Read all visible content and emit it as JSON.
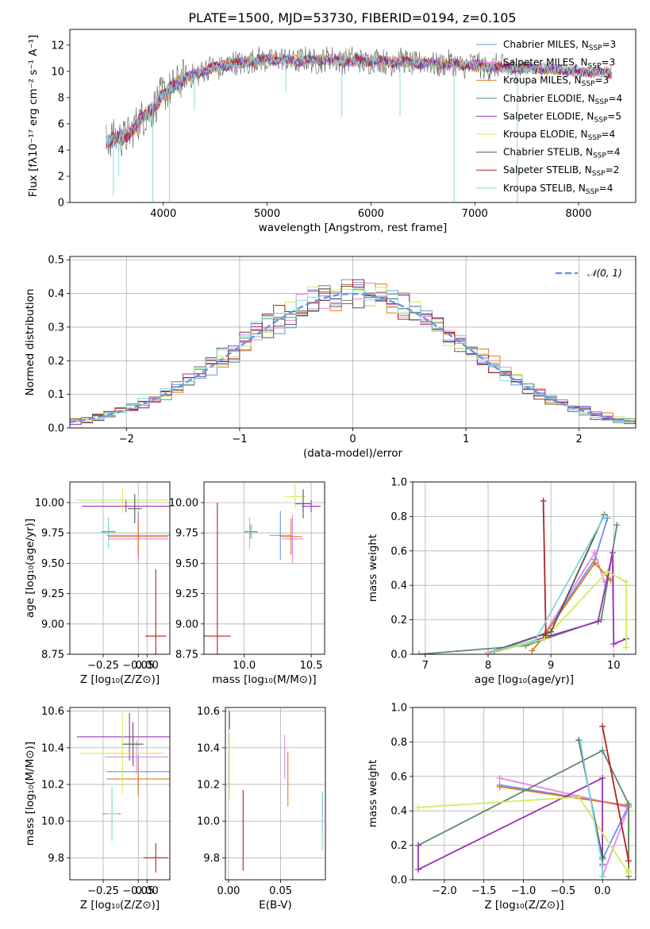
{
  "title": "PLATE=1500, MJD=53730, FIBERID=0194, z=0.105",
  "models": [
    {
      "name": "Chabrier MILES",
      "nssp": "3",
      "color": "#6495ed"
    },
    {
      "name": "Salpeter MILES",
      "nssp": "3",
      "color": "#ee82ee"
    },
    {
      "name": "Kroupa MILES",
      "nssp": "3",
      "color": "#e07b1a"
    },
    {
      "name": "Chabrier ELODIE",
      "nssp": "4",
      "color": "#5f8a6a"
    },
    {
      "name": "Salpeter ELODIE",
      "nssp": "5",
      "color": "#9b30b5"
    },
    {
      "name": "Kroupa ELODIE",
      "nssp": "4",
      "color": "#d4ea5a"
    },
    {
      "name": "Chabrier STELIB",
      "nssp": "4",
      "color": "#555555"
    },
    {
      "name": "Salpeter STELIB",
      "nssp": "2",
      "color": "#b22222"
    },
    {
      "name": "Kroupa STELIB",
      "nssp": "4",
      "color": "#7fd8d8"
    }
  ],
  "legend_nssp_prefix": "N",
  "legend_nssp_sub": "SSP",
  "chart_data": [
    {
      "id": "spectrum",
      "type": "line",
      "xlabel": "wavelength [Angstrom, rest frame]",
      "ylabel": "Flux [fλ10⁻¹⁷ erg cm⁻² s⁻¹ A⁻¹]",
      "xlim": [
        3100,
        8550
      ],
      "ylim": [
        0,
        13.2
      ],
      "xticks": [
        4000,
        5000,
        6000,
        7000,
        8000
      ],
      "yticks": [
        0,
        2,
        4,
        6,
        8,
        10,
        12
      ],
      "anchors_x": [
        3450,
        3600,
        3700,
        3800,
        3900,
        4000,
        4100,
        4300,
        4500,
        4800,
        5000,
        5300,
        5600,
        6000,
        6300,
        6600,
        6900,
        7200,
        7600,
        8000,
        8300
      ],
      "anchors_y": [
        4.6,
        5.0,
        5.4,
        6.5,
        7.2,
        8.2,
        9.0,
        9.8,
        10.3,
        10.7,
        10.9,
        10.8,
        10.9,
        10.8,
        10.7,
        10.6,
        10.5,
        10.3,
        10.2,
        10.0,
        9.9
      ]
    },
    {
      "id": "residuals",
      "type": "line",
      "xlabel": "(data-model)/error",
      "ylabel": "Normed distribution",
      "xlim": [
        -2.5,
        2.5
      ],
      "ylim": [
        0,
        0.51
      ],
      "xticks": [
        -2,
        -1,
        0,
        1,
        2
      ],
      "yticks": [
        0.0,
        0.1,
        0.2,
        0.3,
        0.4,
        0.5
      ],
      "gauss_label": "𝒩(0, 1)",
      "gauss_color": "#6495ed"
    },
    {
      "id": "age_vs_Z",
      "type": "scatter",
      "xlabel": "Z [log₁₀(Z/Z⊙)]",
      "ylabel": "age  [log₁₀(age/yr)]",
      "xlim": [
        -0.44,
        0.13
      ],
      "ylim": [
        8.75,
        10.17
      ],
      "xticks": [
        -0.25,
        -0.05,
        0.0
      ],
      "xticklabels": [
        "−0.25",
        "−0.05",
        "0.00"
      ],
      "yticks": [
        8.75,
        9.0,
        9.25,
        9.5,
        9.75,
        10.0
      ],
      "points": [
        {
          "m": 0,
          "x": -0.05,
          "y": 9.73,
          "xerr": 0.18,
          "yerr": 0.2
        },
        {
          "m": 1,
          "x": -0.05,
          "y": 9.7,
          "xerr": 0.17,
          "yerr": 0.2
        },
        {
          "m": 2,
          "x": -0.05,
          "y": 9.72,
          "xerr": 0.17,
          "yerr": 0.15
        },
        {
          "m": 3,
          "x": -0.22,
          "y": 9.76,
          "xerr": 0.04,
          "yerr": 0.06
        },
        {
          "m": 4,
          "x": -0.12,
          "y": 9.97,
          "xerr": 0.25,
          "yerr": 0.05
        },
        {
          "m": 5,
          "x": -0.14,
          "y": 10.02,
          "xerr": 0.26,
          "yerr": 0.1
        },
        {
          "m": 6,
          "x": -0.07,
          "y": 9.95,
          "xerr": 0.04,
          "yerr": 0.12
        },
        {
          "m": 7,
          "x": 0.05,
          "y": 8.9,
          "xerr": 0.06,
          "yerr": 0.55
        },
        {
          "m": 8,
          "x": -0.22,
          "y": 9.75,
          "xerr": 0.05,
          "yerr": 0.13
        }
      ]
    },
    {
      "id": "age_vs_mass",
      "type": "scatter",
      "xlabel": "mass [log₁₀(M/M⊙)]",
      "ylabel": "",
      "xlim": [
        9.7,
        10.6
      ],
      "ylim": [
        8.75,
        10.17
      ],
      "xticks": [
        10.0,
        10.5
      ],
      "xticklabels": [
        "10.0",
        "10.5"
      ],
      "yticks": [
        8.75,
        9.0,
        9.25,
        9.5,
        9.75,
        10.0
      ],
      "points": [
        {
          "m": 0,
          "x": 10.27,
          "y": 9.73,
          "xerr": 0.08,
          "yerr": 0.2
        },
        {
          "m": 1,
          "x": 10.36,
          "y": 9.7,
          "xerr": 0.08,
          "yerr": 0.2
        },
        {
          "m": 2,
          "x": 10.35,
          "y": 9.72,
          "xerr": 0.08,
          "yerr": 0.15
        },
        {
          "m": 3,
          "x": 10.05,
          "y": 9.76,
          "xerr": 0.05,
          "yerr": 0.06
        },
        {
          "m": 4,
          "x": 10.5,
          "y": 9.97,
          "xerr": 0.07,
          "yerr": 0.05
        },
        {
          "m": 5,
          "x": 10.38,
          "y": 10.05,
          "xerr": 0.08,
          "yerr": 0.1
        },
        {
          "m": 6,
          "x": 10.44,
          "y": 9.99,
          "xerr": 0.06,
          "yerr": 0.12
        },
        {
          "m": 7,
          "x": 9.8,
          "y": 8.9,
          "xerr": 0.1,
          "yerr": 1.1
        },
        {
          "m": 8,
          "x": 10.04,
          "y": 9.75,
          "xerr": 0.04,
          "yerr": 0.13
        }
      ]
    },
    {
      "id": "massweight_vs_age",
      "type": "line",
      "xlabel": "age  [log₁₀(age/yr)]",
      "ylabel": "mass weight",
      "xlim": [
        6.8,
        10.35
      ],
      "ylim": [
        0.0,
        1.0
      ],
      "xticks": [
        7,
        8,
        9,
        10
      ],
      "yticks": [
        0.0,
        0.2,
        0.4,
        0.6,
        0.8,
        1.0
      ],
      "series": [
        {
          "m": 0,
          "x": [
            8.0,
            8.9,
            9.7,
            9.9
          ],
          "y": [
            0.01,
            0.12,
            0.55,
            0.79
          ]
        },
        {
          "m": 1,
          "x": [
            8.0,
            8.9,
            9.7,
            9.85
          ],
          "y": [
            0.01,
            0.12,
            0.59,
            0.42
          ]
        },
        {
          "m": 2,
          "x": [
            8.7,
            8.9,
            9.7,
            9.95
          ],
          "y": [
            0.02,
            0.11,
            0.53,
            0.43
          ]
        },
        {
          "m": 3,
          "x": [
            6.9,
            8.6,
            9.8,
            10.05
          ],
          "y": [
            0.0,
            0.05,
            0.2,
            0.75
          ]
        },
        {
          "m": 4,
          "x": [
            8.0,
            9.75,
            9.98,
            10.0,
            10.2
          ],
          "y": [
            0.0,
            0.19,
            0.59,
            0.06,
            0.09
          ]
        },
        {
          "m": 5,
          "x": [
            8.0,
            8.9,
            9.9,
            10.2,
            10.2
          ],
          "y": [
            0.0,
            0.09,
            0.48,
            0.42,
            0.04
          ]
        },
        {
          "m": 6,
          "x": [
            8.1,
            9.0,
            9.85
          ],
          "y": [
            0.02,
            0.13,
            0.81
          ]
        },
        {
          "m": 7,
          "x": [
            8.88,
            8.92
          ],
          "y": [
            0.89,
            0.11
          ]
        },
        {
          "m": 8,
          "x": [
            8.1,
            8.75,
            9.85
          ],
          "y": [
            0.02,
            0.08,
            0.8
          ]
        }
      ]
    },
    {
      "id": "mass_vs_Z",
      "type": "scatter",
      "xlabel": "Z [log₁₀(Z/Z⊙)]",
      "ylabel": "mass [log₁₀(M/M⊙)]",
      "xlim": [
        -0.44,
        0.13
      ],
      "ylim": [
        9.68,
        10.62
      ],
      "xticks": [
        -0.25,
        -0.05,
        0.0
      ],
      "xticklabels": [
        "−0.25",
        "−0.05",
        "0.00"
      ],
      "yticks": [
        9.8,
        10.0,
        10.2,
        10.4,
        10.6
      ],
      "points": [
        {
          "m": 0,
          "x": -0.05,
          "y": 10.27,
          "xerr": 0.18,
          "yerr": 0.09
        },
        {
          "m": 1,
          "x": -0.06,
          "y": 10.35,
          "xerr": 0.18,
          "yerr": 0.09
        },
        {
          "m": 2,
          "x": -0.05,
          "y": 10.23,
          "xerr": 0.18,
          "yerr": 0.09
        },
        {
          "m": 3,
          "x": -0.2,
          "y": 10.04,
          "xerr": 0.05,
          "yerr": 0.07
        },
        {
          "m": 4,
          "x": -0.1,
          "y": 10.46,
          "xerr": 0.3,
          "yerr": 0.13
        },
        {
          "m": 5,
          "x": -0.14,
          "y": 10.37,
          "xerr": 0.24,
          "yerr": 0.22
        },
        {
          "m": 6,
          "x": -0.08,
          "y": 10.42,
          "xerr": 0.06,
          "yerr": 0.12
        },
        {
          "m": 7,
          "x": 0.05,
          "y": 9.8,
          "xerr": 0.07,
          "yerr": 0.08
        },
        {
          "m": 8,
          "x": -0.2,
          "y": 10.04,
          "xerr": 0.04,
          "yerr": 0.15
        }
      ]
    },
    {
      "id": "mass_vs_EBV",
      "type": "scatter",
      "xlabel": "E(B-V)",
      "ylabel": "",
      "xlim": [
        -0.003,
        0.093
      ],
      "ylim": [
        9.68,
        10.62
      ],
      "xticks": [
        0.0,
        0.05
      ],
      "xticklabels": [
        "0.00",
        "0.05"
      ],
      "yticks": [
        9.8,
        10.0,
        10.2,
        10.4,
        10.6
      ],
      "points": [
        {
          "m": 0,
          "x": 0.09,
          "y": 10.05,
          "xerr": 0.0,
          "yerr": 0.1
        },
        {
          "m": 1,
          "x": 0.054,
          "y": 10.35,
          "xerr": 0.0,
          "yerr": 0.12
        },
        {
          "m": 2,
          "x": 0.057,
          "y": 10.23,
          "xerr": 0.0,
          "yerr": 0.15
        },
        {
          "m": 3,
          "x": 0.09,
          "y": 10.05,
          "xerr": 0.0,
          "yerr": 0.06
        },
        {
          "m": 4,
          "x": 0.001,
          "y": 10.55,
          "xerr": 0.0,
          "yerr": 0.05
        },
        {
          "m": 5,
          "x": 0.001,
          "y": 10.3,
          "xerr": 0.0,
          "yerr": 0.18
        },
        {
          "m": 6,
          "x": 0.09,
          "y": 10.1,
          "xerr": 0.0,
          "yerr": 0.06
        },
        {
          "m": 7,
          "x": 0.014,
          "y": 9.95,
          "xerr": 0.0,
          "yerr": 0.22
        },
        {
          "m": 8,
          "x": 0.09,
          "y": 10.0,
          "xerr": 0.0,
          "yerr": 0.16
        }
      ]
    },
    {
      "id": "massweight_vs_Z",
      "type": "line",
      "xlabel": "Z [log₁₀(Z/Z⊙)]",
      "ylabel": "mass weight",
      "xlim": [
        -2.4,
        0.42
      ],
      "ylim": [
        0.0,
        1.0
      ],
      "xticks": [
        -2.0,
        -1.5,
        -1.0,
        -0.5,
        0.0
      ],
      "xticklabels": [
        "−2.0",
        "−1.5",
        "−1.0",
        "−0.5",
        "0.0"
      ],
      "yticks": [
        0.0,
        0.2,
        0.4,
        0.6,
        0.8,
        1.0
      ],
      "series": [
        {
          "m": 0,
          "x": [
            -1.3,
            0.33,
            0.0,
            0.0
          ],
          "y": [
            0.55,
            0.43,
            0.12,
            0.02
          ]
        },
        {
          "m": 1,
          "x": [
            -1.3,
            0.33,
            0.0
          ],
          "y": [
            0.59,
            0.42,
            0.02
          ]
        },
        {
          "m": 2,
          "x": [
            -1.3,
            0.33,
            0.33
          ],
          "y": [
            0.54,
            0.43,
            0.02
          ]
        },
        {
          "m": 3,
          "x": [
            -2.33,
            0.0,
            0.33,
            0.33
          ],
          "y": [
            0.2,
            0.75,
            0.44,
            0.02
          ]
        },
        {
          "m": 4,
          "x": [
            -2.33,
            -2.33,
            0.0,
            0.0
          ],
          "y": [
            0.2,
            0.06,
            0.59,
            0.09
          ]
        },
        {
          "m": 5,
          "x": [
            -2.33,
            -0.3,
            0.33,
            0.33
          ],
          "y": [
            0.42,
            0.48,
            0.04,
            0.05
          ]
        },
        {
          "m": 6,
          "x": [
            -0.3,
            0.0,
            0.0
          ],
          "y": [
            0.81,
            0.13,
            0.02
          ]
        },
        {
          "m": 7,
          "x": [
            0.0,
            0.33
          ],
          "y": [
            0.89,
            0.11
          ]
        },
        {
          "m": 8,
          "x": [
            -0.28,
            0.0,
            0.0
          ],
          "y": [
            0.8,
            0.08,
            0.02
          ]
        }
      ]
    }
  ]
}
